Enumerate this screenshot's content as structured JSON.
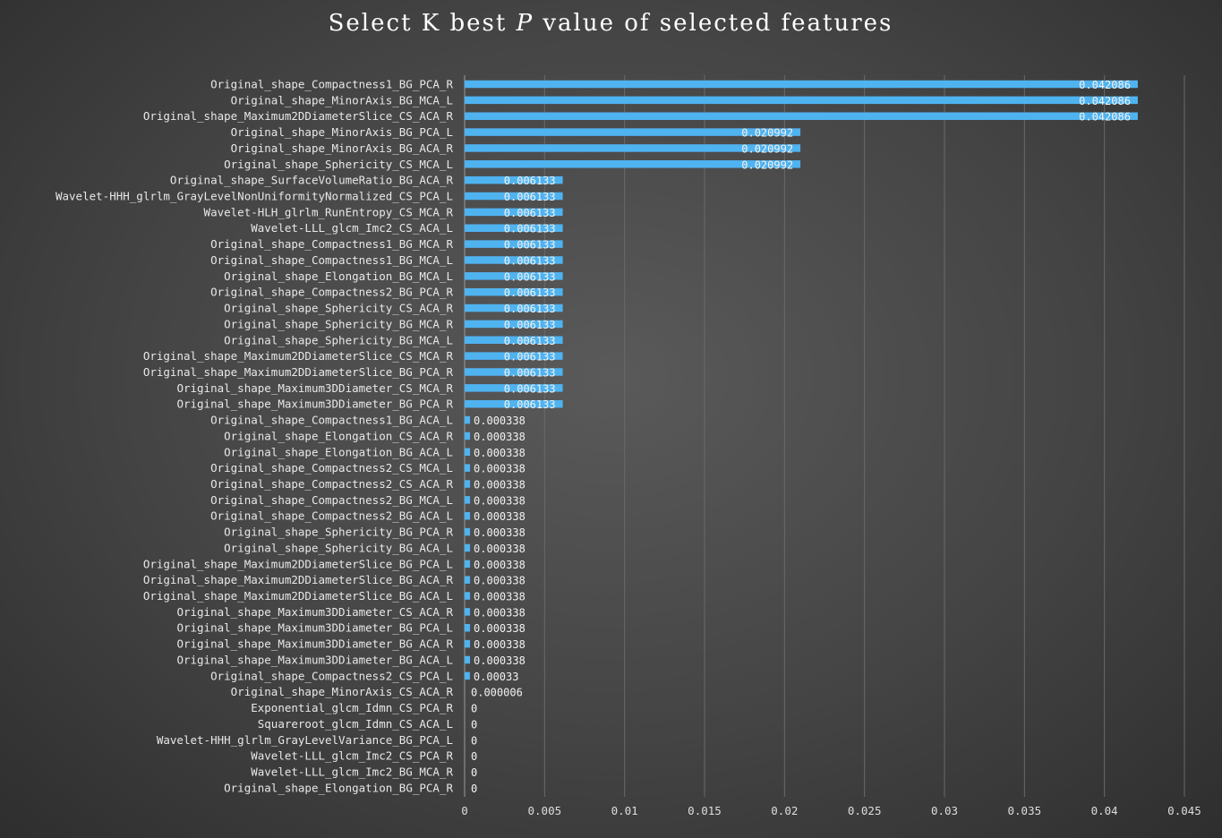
{
  "chart_data": {
    "type": "bar",
    "orientation": "horizontal",
    "title_prefix": "Select K best ",
    "title_italic": "P",
    "title_suffix": " value of selected features",
    "bar_color": "#4fb3f0",
    "xlim": [
      0,
      0.045
    ],
    "xticks": [
      0,
      0.005,
      0.01,
      0.015,
      0.02,
      0.025,
      0.03,
      0.035,
      0.04,
      0.045
    ],
    "xtick_labels": [
      "0",
      "0.005",
      "0.01",
      "0.015",
      "0.02",
      "0.025",
      "0.03",
      "0.035",
      "0.04",
      "0.045"
    ],
    "grid": "vertical",
    "categories": [
      "Original_shape_Compactness1_BG_PCA_R",
      "Original_shape_MinorAxis_BG_MCA_L",
      "Original_shape_Maximum2DDiameterSlice_CS_ACA_R",
      "Original_shape_MinorAxis_BG_PCA_L",
      "Original_shape_MinorAxis_BG_ACA_R",
      "Original_shape_Sphericity_CS_MCA_L",
      "Original_shape_SurfaceVolumeRatio_BG_ACA_R",
      "Wavelet-HHH_glrlm_GrayLevelNonUniformityNormalized_CS_PCA_L",
      "Wavelet-HLH_glrlm_RunEntropy_CS_MCA_R",
      "Wavelet-LLL_glcm_Imc2_CS_ACA_L",
      "Original_shape_Compactness1_BG_MCA_R",
      "Original_shape_Compactness1_BG_MCA_L",
      "Original_shape_Elongation_BG_MCA_L",
      "Original_shape_Compactness2_BG_PCA_R",
      "Original_shape_Sphericity_CS_ACA_R",
      "Original_shape_Sphericity_BG_MCA_R",
      "Original_shape_Sphericity_BG_MCA_L",
      "Original_shape_Maximum2DDiameterSlice_CS_MCA_R",
      "Original_shape_Maximum2DDiameterSlice_BG_PCA_R",
      "Original_shape_Maximum3DDiameter_CS_MCA_R",
      "Original_shape_Maximum3DDiameter_BG_PCA_R",
      "Original_shape_Compactness1_BG_ACA_L",
      "Original_shape_Elongation_CS_ACA_R",
      "Original_shape_Elongation_BG_ACA_L",
      "Original_shape_Compactness2_CS_MCA_L",
      "Original_shape_Compactness2_CS_ACA_R",
      "Original_shape_Compactness2_BG_MCA_L",
      "Original_shape_Compactness2_BG_ACA_L",
      "Original_shape_Sphericity_BG_PCA_R",
      "Original_shape_Sphericity_BG_ACA_L",
      "Original_shape_Maximum2DDiameterSlice_BG_PCA_L",
      "Original_shape_Maximum2DDiameterSlice_BG_ACA_R",
      "Original_shape_Maximum2DDiameterSlice_BG_ACA_L",
      "Original_shape_Maximum3DDiameter_CS_ACA_R",
      "Original_shape_Maximum3DDiameter_BG_PCA_L",
      "Original_shape_Maximum3DDiameter_BG_ACA_R",
      "Original_shape_Maximum3DDiameter_BG_ACA_L",
      "Original_shape_Compactness2_CS_PCA_L",
      "Original_shape_MinorAxis_CS_ACA_R",
      "Exponential_glcm_Idmn_CS_PCA_R",
      "Squareroot_glcm_Idmn_CS_ACA_L",
      "Wavelet-HHH_glrlm_GrayLevelVariance_BG_PCA_L",
      "Wavelet-LLL_glcm_Imc2_CS_PCA_R",
      "Wavelet-LLL_glcm_Imc2_BG_MCA_R",
      "Original_shape_Elongation_BG_PCA_R"
    ],
    "values": [
      0.042086,
      0.042086,
      0.042086,
      0.020992,
      0.020992,
      0.020992,
      0.006133,
      0.006133,
      0.006133,
      0.006133,
      0.006133,
      0.006133,
      0.006133,
      0.006133,
      0.006133,
      0.006133,
      0.006133,
      0.006133,
      0.006133,
      0.006133,
      0.006133,
      0.000338,
      0.000338,
      0.000338,
      0.000338,
      0.000338,
      0.000338,
      0.000338,
      0.000338,
      0.000338,
      0.000338,
      0.000338,
      0.000338,
      0.000338,
      0.000338,
      0.000338,
      0.000338,
      0.00033,
      6e-06,
      0,
      0,
      0,
      0,
      0,
      0
    ],
    "value_labels": [
      "0.042086",
      "0.042086",
      "0.042086",
      "0.020992",
      "0.020992",
      "0.020992",
      "0.006133",
      "0.006133",
      "0.006133",
      "0.006133",
      "0.006133",
      "0.006133",
      "0.006133",
      "0.006133",
      "0.006133",
      "0.006133",
      "0.006133",
      "0.006133",
      "0.006133",
      "0.006133",
      "0.006133",
      "0.000338",
      "0.000338",
      "0.000338",
      "0.000338",
      "0.000338",
      "0.000338",
      "0.000338",
      "0.000338",
      "0.000338",
      "0.000338",
      "0.000338",
      "0.000338",
      "0.000338",
      "0.000338",
      "0.000338",
      "0.000338",
      "0.00033",
      "0.000006",
      "0",
      "0",
      "0",
      "0",
      "0",
      "0"
    ]
  }
}
